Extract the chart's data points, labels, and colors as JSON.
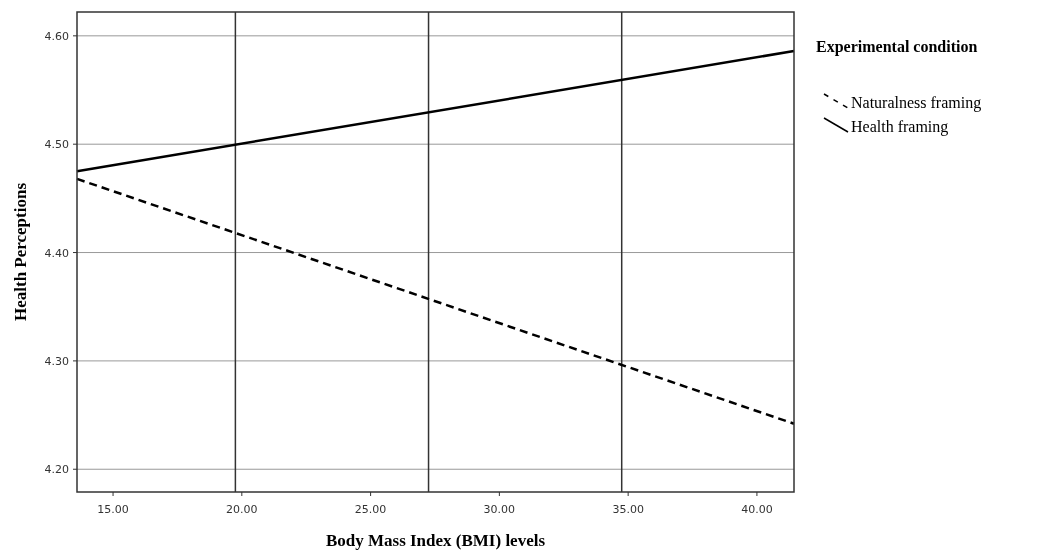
{
  "chart_data": {
    "type": "line",
    "xlabel": "Body Mass Index (BMI) levels",
    "ylabel": "Health Perceptions",
    "legend_title": "Experimental condition",
    "legend": "top right",
    "grid": "y",
    "xlim": [
      13.6,
      41.44
    ],
    "xticks": [
      {
        "value": 15,
        "label": "15.00"
      },
      {
        "value": 20,
        "label": "20.00"
      },
      {
        "value": 25,
        "label": "25.00"
      },
      {
        "value": 30,
        "label": "30.00"
      },
      {
        "value": 35,
        "label": "35.00"
      },
      {
        "value": 40,
        "label": "40.00"
      }
    ],
    "ylim": [
      4.179,
      4.622
    ],
    "yticks": [
      {
        "value": 4.2,
        "label": "4.20"
      },
      {
        "value": 4.3,
        "label": "4.30"
      },
      {
        "value": 4.4,
        "label": "4.40"
      },
      {
        "value": 4.5,
        "label": "4.50"
      },
      {
        "value": 4.6,
        "label": "4.60"
      }
    ],
    "x": [
      13.6,
      41.44
    ],
    "series": [
      {
        "name": "Naturalness framing",
        "color": "#000000",
        "line_style": "dashed",
        "values": [
          4.468,
          4.242
        ]
      },
      {
        "name": "Health framing",
        "color": "#000000",
        "line_style": "solid",
        "values": [
          4.475,
          4.586
        ]
      }
    ],
    "ref_lines": [
      {
        "axis": "x",
        "value": 19.75,
        "color": "#333333"
      },
      {
        "axis": "x",
        "value": 27.25,
        "color": "#333333"
      },
      {
        "axis": "x",
        "value": 34.75,
        "color": "#333333"
      }
    ]
  }
}
